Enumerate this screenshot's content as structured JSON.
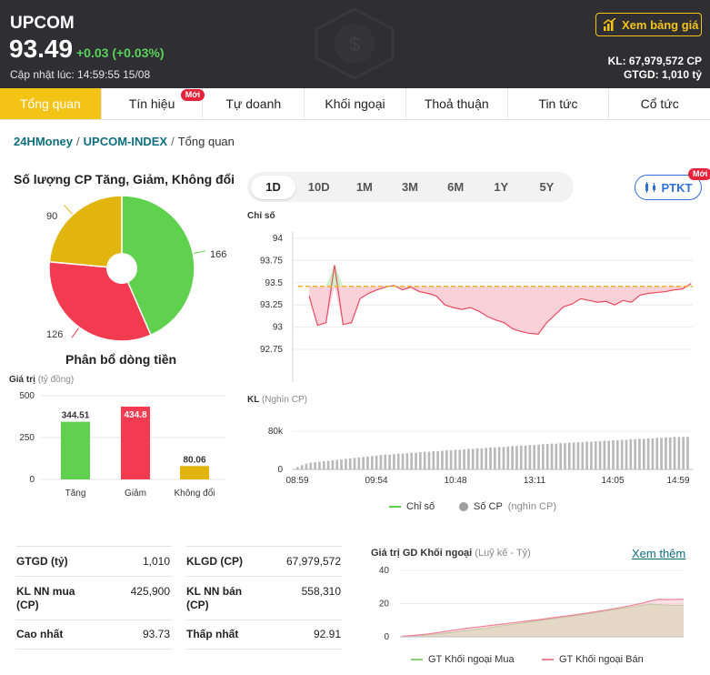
{
  "header": {
    "index_name": "UPCOM",
    "index_value": "93.49",
    "change": "+0.03 (+0.03%)",
    "update_label": "Cập nhật lúc: 14:59:55 15/08",
    "board_button": "Xem bảng giá",
    "kl": "KL: 67,979,572 CP",
    "gtgd": "GTGD: 1,010 tỷ",
    "up_color": "#57d35b",
    "accent": "#f3c316"
  },
  "tabs": [
    {
      "label": "Tổng quan",
      "active": true
    },
    {
      "label": "Tín hiệu",
      "badge": "Mới"
    },
    {
      "label": "Tự doanh"
    },
    {
      "label": "Khối ngoại"
    },
    {
      "label": "Thoả thuận"
    },
    {
      "label": "Tin tức"
    },
    {
      "label": "Cổ tức"
    }
  ],
  "breadcrumb": {
    "root": "24HMoney",
    "index": "UPCOM-INDEX",
    "current": "Tổng quan"
  },
  "stocks_section": {
    "title": "Số lượng CP Tăng, Giảm, Không đổi",
    "up": "166",
    "down": "126",
    "unchanged": "90"
  },
  "flow_section": {
    "title": "Phân bổ dòng tiền",
    "axis_label": "Giá trị",
    "axis_unit": "(tỷ đồng)"
  },
  "periods": [
    "1D",
    "10D",
    "1M",
    "3M",
    "6M",
    "1Y",
    "5Y"
  ],
  "ptkt": {
    "label": "PTKT",
    "badge": "Mới"
  },
  "index_chart": {
    "axis_label": "Chỉ số",
    "y_ticks": [
      "94",
      "93.75",
      "93.5",
      "93.25",
      "93",
      "92.75"
    ]
  },
  "volume_chart": {
    "axis_label": "KL",
    "axis_unit": "(Nghìn CP)",
    "y_ticks": [
      "80k",
      "0"
    ],
    "x_ticks": [
      "08:59",
      "09:54",
      "10:48",
      "13:11",
      "14:05",
      "14:59"
    ]
  },
  "main_legend": {
    "index": "Chỉ số",
    "volume": "Số CP",
    "volume_unit": "(nghìn CP)"
  },
  "stats": {
    "gtgd_label": "GTGD (tỷ)",
    "gtgd_value": "1,010",
    "klgd_label": "KLGD (CP)",
    "klgd_value": "67,979,572",
    "nn_buy_label": "KL NN mua (CP)",
    "nn_buy_value": "425,900",
    "nn_sell_label": "KL NN bán (CP)",
    "nn_sell_value": "558,310",
    "high_label": "Cao nhất",
    "high_value": "93.73",
    "low_label": "Thấp nhất",
    "low_value": "92.91"
  },
  "foreign_section": {
    "title": "Giá trị GD Khối ngoại",
    "unit": "(Luỹ kế - Tỷ)",
    "more_link": "Xem thêm",
    "y_ticks": [
      "40",
      "20",
      "0"
    ],
    "legend_buy": "GT Khối ngoại Mua",
    "legend_sell": "GT Khối ngoại Bán"
  },
  "chart_data": [
    {
      "type": "pie",
      "labels": [
        "Tăng",
        "Giảm",
        "Không đổi"
      ],
      "values": [
        166,
        126,
        90
      ],
      "colors": [
        "#5fd14e",
        "#f23a50",
        "#e1b40e"
      ]
    },
    {
      "type": "bar",
      "title": "Phân bổ dòng tiền",
      "ylabel": "Giá trị (tỷ đồng)",
      "categories": [
        "Tăng",
        "Giảm",
        "Không đổi"
      ],
      "values": [
        344.51,
        434.8,
        80.06
      ],
      "value_labels": [
        "344.51",
        "434.8",
        "80.06"
      ],
      "colors": [
        "#5fd14e",
        "#f23a50",
        "#e1b40e"
      ],
      "ylim": [
        0,
        500
      ],
      "y_ticks": [
        "500",
        "250",
        "0"
      ]
    },
    {
      "type": "line",
      "series": [
        {
          "name": "Chỉ số",
          "color": "#5fd14e"
        }
      ],
      "reference": 93.46,
      "ylim": [
        92.75,
        94
      ],
      "x": [
        "08:59",
        "09:06",
        "09:12",
        "09:18",
        "09:24",
        "09:30",
        "09:36",
        "09:42",
        "09:48",
        "09:54",
        "10:00",
        "10:06",
        "10:12",
        "10:18",
        "10:24",
        "10:30",
        "10:36",
        "10:42",
        "10:48",
        "10:54",
        "11:00",
        "11:06",
        "11:12",
        "11:18",
        "11:24",
        "11:30",
        "13:00",
        "13:11",
        "13:17",
        "13:23",
        "13:29",
        "13:35",
        "13:41",
        "13:47",
        "13:53",
        "13:59",
        "14:05",
        "14:11",
        "14:17",
        "14:23",
        "14:29",
        "14:35",
        "14:41",
        "14:47",
        "14:53",
        "14:59"
      ],
      "values": [
        93.35,
        93.02,
        93.05,
        93.7,
        93.03,
        93.05,
        93.32,
        93.38,
        93.42,
        93.45,
        93.47,
        93.42,
        93.45,
        93.4,
        93.38,
        93.35,
        93.25,
        93.22,
        93.2,
        93.22,
        93.18,
        93.12,
        93.08,
        93.05,
        92.98,
        92.95,
        92.93,
        92.92,
        93.05,
        93.14,
        93.23,
        93.26,
        93.32,
        93.3,
        93.28,
        93.29,
        93.25,
        93.3,
        93.28,
        93.36,
        93.38,
        93.39,
        93.4,
        93.42,
        93.43,
        93.49
      ]
    },
    {
      "type": "bar",
      "title": "",
      "series": [
        {
          "name": "Số CP",
          "color": "#bbbbbb"
        }
      ],
      "ylim": [
        0,
        90
      ],
      "x_ticks": [
        "08:59",
        "09:54",
        "10:48",
        "13:11",
        "14:05",
        "14:59"
      ],
      "values": [
        5,
        9,
        12,
        14,
        15,
        16,
        17,
        18,
        19,
        20,
        21,
        22,
        23,
        24,
        25,
        26,
        27,
        28,
        29,
        30,
        31,
        31,
        32,
        33,
        33,
        34,
        35,
        35,
        36,
        37,
        37,
        38,
        38,
        39,
        40,
        40,
        41,
        41,
        42,
        43,
        43,
        44,
        44,
        45,
        46,
        46,
        47,
        47,
        48,
        49,
        49,
        50,
        50,
        51,
        51,
        52,
        53,
        53,
        54,
        54,
        55,
        55,
        56,
        56,
        57,
        57,
        58,
        58,
        59,
        59,
        60,
        60,
        61,
        61,
        62,
        62,
        63,
        63,
        64,
        64,
        65,
        65,
        66,
        66,
        67,
        67,
        68,
        68,
        68,
        68
      ]
    },
    {
      "type": "area",
      "title": "Giá trị GD Khối ngoại",
      "ylim": [
        0,
        40
      ],
      "series": [
        {
          "name": "GT Khối ngoại Mua",
          "color": "#8fd07a",
          "values": [
            0.2,
            0.5,
            0.8,
            1.1,
            1.5,
            2.0,
            2.6,
            3.2,
            3.8,
            4.5,
            5.1,
            5.8,
            6.5,
            7.2,
            7.9,
            8.6,
            9.3,
            10.0,
            10.7,
            11.4,
            12.0,
            12.7,
            13.4,
            14.2,
            15.0,
            15.8,
            16.6,
            17.4,
            18.2,
            19.0,
            19.6,
            19.4,
            19.1,
            18.9,
            19.0
          ]
        },
        {
          "name": "GT Khối ngoại Bán",
          "color": "#f08096",
          "values": [
            0.3,
            0.7,
            1.1,
            1.6,
            2.3,
            3.0,
            3.8,
            4.5,
            5.2,
            5.8,
            6.4,
            7.0,
            7.6,
            8.2,
            8.8,
            9.4,
            10.0,
            10.6,
            11.3,
            12.0,
            12.6,
            13.3,
            14.0,
            14.8,
            15.6,
            16.4,
            17.3,
            18.2,
            19.2,
            20.2,
            21.6,
            22.6,
            22.4,
            22.5,
            22.6
          ]
        }
      ]
    }
  ]
}
